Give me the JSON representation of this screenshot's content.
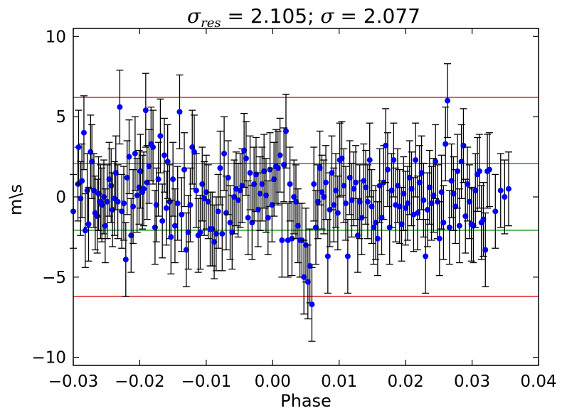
{
  "chart_data": {
    "type": "scatter",
    "title": {
      "sym1": "σ",
      "sub1": "res",
      "text1": " = 2.105; ",
      "sym2": "σ",
      "text2": " = 2.077"
    },
    "xlabel": "Phase",
    "ylabel": "m\\s",
    "xlim": [
      -0.03,
      0.04
    ],
    "ylim": [
      -10.5,
      10.5
    ],
    "xticks": [
      -0.03,
      -0.02,
      -0.01,
      0.0,
      0.01,
      0.02,
      0.03,
      0.04
    ],
    "xtick_labels": [
      "−0.03",
      "−0.02",
      "−0.01",
      "0.00",
      "0.01",
      "0.02",
      "0.03",
      "0.04"
    ],
    "yticks": [
      10,
      5,
      0,
      -5,
      -10
    ],
    "ytick_labels": [
      "10",
      "5",
      "0",
      "−5",
      "−10"
    ],
    "grid": false,
    "hlines": [
      {
        "y": 6.2,
        "color": "#e02020"
      },
      {
        "y": -6.2,
        "color": "#e02020"
      },
      {
        "y": 2.077,
        "color": "#229922"
      },
      {
        "y": -2.077,
        "color": "#229922"
      }
    ],
    "marker_color": "#0000ff",
    "errorbar_color": "#000000",
    "errorbar_halfwidth": 2.3,
    "points": [
      {
        "x": -0.03,
        "y": -0.9
      },
      {
        "x": -0.0293,
        "y": 0.8
      },
      {
        "x": -0.0292,
        "y": 3.1
      },
      {
        "x": -0.0289,
        "y": -0.1
      },
      {
        "x": -0.0287,
        "y": 1.0
      },
      {
        "x": -0.0284,
        "y": 4.0
      },
      {
        "x": -0.0282,
        "y": -2.1
      },
      {
        "x": -0.0279,
        "y": 0.4
      },
      {
        "x": -0.0277,
        "y": -1.7
      },
      {
        "x": -0.0274,
        "y": 2.8
      },
      {
        "x": -0.0272,
        "y": 2.2
      },
      {
        "x": -0.0269,
        "y": 0.4
      },
      {
        "x": -0.0267,
        "y": -1.0
      },
      {
        "x": -0.0264,
        "y": -1.2
      },
      {
        "x": -0.0262,
        "y": 0.2
      },
      {
        "x": -0.0259,
        "y": -0.3
      },
      {
        "x": -0.0257,
        "y": -0.5
      },
      {
        "x": -0.0254,
        "y": 0.0
      },
      {
        "x": -0.0252,
        "y": -1.8
      },
      {
        "x": -0.0249,
        "y": -0.3
      },
      {
        "x": -0.0246,
        "y": 1.1
      },
      {
        "x": -0.0243,
        "y": 0.7
      },
      {
        "x": -0.0241,
        "y": -0.8
      },
      {
        "x": -0.0238,
        "y": -0.1
      },
      {
        "x": -0.0236,
        "y": 1.5
      },
      {
        "x": -0.0233,
        "y": -0.3
      },
      {
        "x": -0.023,
        "y": 5.6
      },
      {
        "x": -0.0227,
        "y": -0.9
      },
      {
        "x": -0.0224,
        "y": -0.4
      },
      {
        "x": -0.0221,
        "y": -3.9
      },
      {
        "x": -0.0219,
        "y": 1.2
      },
      {
        "x": -0.0216,
        "y": 2.5
      },
      {
        "x": -0.0213,
        "y": -2.4
      },
      {
        "x": -0.021,
        "y": -0.6
      },
      {
        "x": -0.0207,
        "y": 2.7
      },
      {
        "x": -0.0204,
        "y": 0.1
      },
      {
        "x": -0.0201,
        "y": 0.6
      },
      {
        "x": -0.0199,
        "y": 1.6
      },
      {
        "x": -0.0196,
        "y": 0.3
      },
      {
        "x": -0.0194,
        "y": 0.5
      },
      {
        "x": -0.0191,
        "y": 5.4
      },
      {
        "x": -0.0189,
        "y": 0.9
      },
      {
        "x": -0.0186,
        "y": 1.9
      },
      {
        "x": -0.0183,
        "y": 3.3
      },
      {
        "x": -0.018,
        "y": 3.1
      },
      {
        "x": -0.0177,
        "y": -1.9
      },
      {
        "x": -0.0175,
        "y": -0.5
      },
      {
        "x": -0.0172,
        "y": 1.1
      },
      {
        "x": -0.0169,
        "y": 3.8
      },
      {
        "x": -0.0166,
        "y": -1.5
      },
      {
        "x": -0.0163,
        "y": 2.6
      },
      {
        "x": -0.016,
        "y": -0.7
      },
      {
        "x": -0.0158,
        "y": 2.2
      },
      {
        "x": -0.0155,
        "y": -0.3
      },
      {
        "x": -0.0153,
        "y": -2.5
      },
      {
        "x": -0.015,
        "y": 1.1
      },
      {
        "x": -0.0147,
        "y": -1.8
      },
      {
        "x": -0.0143,
        "y": -0.4
      },
      {
        "x": -0.014,
        "y": 5.3
      },
      {
        "x": -0.0137,
        "y": -1.1
      },
      {
        "x": -0.0133,
        "y": 1.7
      },
      {
        "x": -0.013,
        "y": -3.3
      },
      {
        "x": -0.0127,
        "y": -2.2
      },
      {
        "x": -0.0124,
        "y": -0.5
      },
      {
        "x": -0.0121,
        "y": 3.1
      },
      {
        "x": -0.0118,
        "y": 2.8
      },
      {
        "x": -0.0115,
        "y": 0.4
      },
      {
        "x": -0.0112,
        "y": -2.4
      },
      {
        "x": -0.0109,
        "y": -2.2
      },
      {
        "x": -0.0106,
        "y": 0.8
      },
      {
        "x": -0.0103,
        "y": -0.1
      },
      {
        "x": -0.01,
        "y": 0.3
      },
      {
        "x": -0.0097,
        "y": -0.3
      },
      {
        "x": -0.0094,
        "y": -2.0
      },
      {
        "x": -0.0091,
        "y": -2.0
      },
      {
        "x": -0.0088,
        "y": -2.8
      },
      {
        "x": -0.0085,
        "y": -2.3
      },
      {
        "x": -0.0082,
        "y": -0.9
      },
      {
        "x": -0.0079,
        "y": 1.8
      },
      {
        "x": -0.0076,
        "y": -2.3
      },
      {
        "x": -0.0073,
        "y": 2.7
      },
      {
        "x": -0.007,
        "y": -1.0
      },
      {
        "x": -0.0067,
        "y": 1.2
      },
      {
        "x": -0.0064,
        "y": -1.6
      },
      {
        "x": -0.0061,
        "y": -2.2
      },
      {
        "x": -0.0058,
        "y": 0.0
      },
      {
        "x": -0.0055,
        "y": 0.5
      },
      {
        "x": -0.0052,
        "y": -0.2
      },
      {
        "x": -0.0049,
        "y": 0.4
      },
      {
        "x": -0.0046,
        "y": 0.7
      },
      {
        "x": -0.0043,
        "y": 2.9
      },
      {
        "x": -0.004,
        "y": 2.4
      },
      {
        "x": -0.0037,
        "y": -1.3
      },
      {
        "x": -0.0034,
        "y": 1.5
      },
      {
        "x": -0.0031,
        "y": -1.6
      },
      {
        "x": -0.0028,
        "y": 0.8
      },
      {
        "x": -0.0025,
        "y": 1.4
      },
      {
        "x": -0.0022,
        "y": -0.8
      },
      {
        "x": -0.0019,
        "y": 0.2
      },
      {
        "x": -0.0016,
        "y": 0.8
      },
      {
        "x": -0.0013,
        "y": 1.6
      },
      {
        "x": -0.001,
        "y": 0.1
      },
      {
        "x": -0.0007,
        "y": -1.3
      },
      {
        "x": -0.0004,
        "y": 1.7
      },
      {
        "x": -0.0001,
        "y": -0.5
      },
      {
        "x": 0.0002,
        "y": 1.1
      },
      {
        "x": 0.0005,
        "y": 1.9
      },
      {
        "x": 0.0008,
        "y": 1.8
      },
      {
        "x": 0.0011,
        "y": 2.6
      },
      {
        "x": 0.0014,
        "y": -2.7
      },
      {
        "x": 0.0017,
        "y": 2.0
      },
      {
        "x": 0.002,
        "y": 4.1
      },
      {
        "x": 0.0023,
        "y": -2.7
      },
      {
        "x": 0.0026,
        "y": 0.8
      },
      {
        "x": 0.0029,
        "y": -2.6
      },
      {
        "x": 0.0032,
        "y": 0.0
      },
      {
        "x": 0.0035,
        "y": -0.3
      },
      {
        "x": 0.0038,
        "y": -1.8
      },
      {
        "x": 0.0041,
        "y": -2.7
      },
      {
        "x": 0.0044,
        "y": -2.7
      },
      {
        "x": 0.0047,
        "y": -5.0
      },
      {
        "x": 0.005,
        "y": -3.0
      },
      {
        "x": 0.0053,
        "y": -5.3
      },
      {
        "x": 0.0056,
        "y": -4.3
      },
      {
        "x": 0.0059,
        "y": -6.7
      },
      {
        "x": 0.0062,
        "y": 0.8
      },
      {
        "x": 0.0065,
        "y": -1.9
      },
      {
        "x": 0.0068,
        "y": -0.3
      },
      {
        "x": 0.0071,
        "y": 1.8
      },
      {
        "x": 0.0074,
        "y": 0.3
      },
      {
        "x": 0.0077,
        "y": 0.0
      },
      {
        "x": 0.008,
        "y": 0.9
      },
      {
        "x": 0.0083,
        "y": -3.7
      },
      {
        "x": 0.0086,
        "y": -0.8
      },
      {
        "x": 0.0089,
        "y": 1.5
      },
      {
        "x": 0.0092,
        "y": -0.5
      },
      {
        "x": 0.0095,
        "y": 0.4
      },
      {
        "x": 0.0098,
        "y": -1.0
      },
      {
        "x": 0.0101,
        "y": 2.3
      },
      {
        "x": 0.0104,
        "y": 2.4
      },
      {
        "x": 0.0107,
        "y": 0.7
      },
      {
        "x": 0.011,
        "y": -0.4
      },
      {
        "x": 0.0113,
        "y": -3.7
      },
      {
        "x": 0.0116,
        "y": 1.2
      },
      {
        "x": 0.0119,
        "y": -0.2
      },
      {
        "x": 0.0122,
        "y": 0.5
      },
      {
        "x": 0.0125,
        "y": 0.9
      },
      {
        "x": 0.0128,
        "y": -2.4
      },
      {
        "x": 0.0131,
        "y": -0.3
      },
      {
        "x": 0.0134,
        "y": -1.3
      },
      {
        "x": 0.0137,
        "y": 1.0
      },
      {
        "x": 0.014,
        "y": 0.6
      },
      {
        "x": 0.0143,
        "y": -0.3
      },
      {
        "x": 0.0146,
        "y": 2.3
      },
      {
        "x": 0.0149,
        "y": -0.6
      },
      {
        "x": 0.0152,
        "y": -1.9
      },
      {
        "x": 0.0155,
        "y": -1.6
      },
      {
        "x": 0.0158,
        "y": -2.6
      },
      {
        "x": 0.0161,
        "y": 0.7
      },
      {
        "x": 0.0164,
        "y": -1.3
      },
      {
        "x": 0.0167,
        "y": 0.9
      },
      {
        "x": 0.017,
        "y": 3.2
      },
      {
        "x": 0.0173,
        "y": 1.7
      },
      {
        "x": 0.0176,
        "y": -1.9
      },
      {
        "x": 0.0179,
        "y": 0.4
      },
      {
        "x": 0.0182,
        "y": 2.3
      },
      {
        "x": 0.0185,
        "y": -0.5
      },
      {
        "x": 0.0188,
        "y": 0.7
      },
      {
        "x": 0.0191,
        "y": -0.6
      },
      {
        "x": 0.0194,
        "y": -1.7
      },
      {
        "x": 0.0197,
        "y": 0.2
      },
      {
        "x": 0.02,
        "y": -0.7
      },
      {
        "x": 0.0203,
        "y": -0.4
      },
      {
        "x": 0.0206,
        "y": 1.2
      },
      {
        "x": 0.0209,
        "y": 0.5
      },
      {
        "x": 0.0212,
        "y": -1.1
      },
      {
        "x": 0.0215,
        "y": 2.3
      },
      {
        "x": 0.0218,
        "y": -1.0
      },
      {
        "x": 0.0221,
        "y": 0.9
      },
      {
        "x": 0.0224,
        "y": 1.5
      },
      {
        "x": 0.0227,
        "y": -0.2
      },
      {
        "x": 0.023,
        "y": -3.7
      },
      {
        "x": 0.0233,
        "y": -0.8
      },
      {
        "x": 0.0236,
        "y": 0.6
      },
      {
        "x": 0.0239,
        "y": -0.4
      },
      {
        "x": 0.0242,
        "y": 0.1
      },
      {
        "x": 0.0245,
        "y": 2.2
      },
      {
        "x": 0.0248,
        "y": -0.3
      },
      {
        "x": 0.0251,
        "y": -2.6
      },
      {
        "x": 0.0254,
        "y": 0.3
      },
      {
        "x": 0.0257,
        "y": -1.6
      },
      {
        "x": 0.026,
        "y": 3.3
      },
      {
        "x": 0.0263,
        "y": 6.0
      },
      {
        "x": 0.0266,
        "y": -1.9
      },
      {
        "x": 0.0269,
        "y": 1.0
      },
      {
        "x": 0.0272,
        "y": 0.2
      },
      {
        "x": 0.0275,
        "y": -0.6
      },
      {
        "x": 0.0278,
        "y": 1.6
      },
      {
        "x": 0.0281,
        "y": -1.8
      },
      {
        "x": 0.0284,
        "y": 2.2
      },
      {
        "x": 0.0287,
        "y": 3.2
      },
      {
        "x": 0.029,
        "y": -1.2
      },
      {
        "x": 0.0293,
        "y": 0.8
      },
      {
        "x": 0.0296,
        "y": -0.3
      },
      {
        "x": 0.0299,
        "y": -1.7
      },
      {
        "x": 0.0302,
        "y": -1.8
      },
      {
        "x": 0.0305,
        "y": 0.4
      },
      {
        "x": 0.0308,
        "y": 1.4
      },
      {
        "x": 0.0311,
        "y": 1.6
      },
      {
        "x": 0.0314,
        "y": -1.6
      },
      {
        "x": 0.0317,
        "y": -1.4
      },
      {
        "x": 0.032,
        "y": -3.3
      },
      {
        "x": 0.0323,
        "y": 1.6
      },
      {
        "x": 0.0326,
        "y": 1.7
      },
      {
        "x": 0.0335,
        "y": -0.9
      },
      {
        "x": 0.0343,
        "y": 0.4
      },
      {
        "x": 0.0349,
        "y": 0.0
      },
      {
        "x": 0.0355,
        "y": 0.5
      }
    ]
  }
}
